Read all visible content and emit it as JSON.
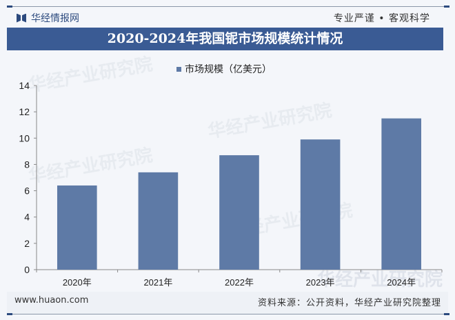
{
  "header": {
    "brand": "华经情报网",
    "slogan": "专业严谨 • 客观科学",
    "title": "2020-2024年我国铌市场规模统计情况"
  },
  "watermark": "华经产业研究院",
  "footer": {
    "url": "www.huaon.com",
    "source": "资料来源：公开资料，华经产业研究院整理"
  },
  "colors": {
    "bar": "#5e7aa6",
    "title_bg": "#3a5b94"
  },
  "chart_data": {
    "type": "bar",
    "title": "2020-2024年我国铌市场规模统计情况",
    "categories": [
      "2020年",
      "2021年",
      "2022年",
      "2023年",
      "2024年"
    ],
    "series": [
      {
        "name": "市场规模（亿美元）",
        "values": [
          6.4,
          7.4,
          8.7,
          9.9,
          11.5
        ]
      }
    ],
    "legend": "top-center",
    "xlabel": "",
    "ylabel": "",
    "ylim": [
      0,
      14
    ],
    "yticks": [
      "0",
      "2",
      "4",
      "6",
      "8",
      "10",
      "12",
      "14"
    ],
    "grid": false
  }
}
